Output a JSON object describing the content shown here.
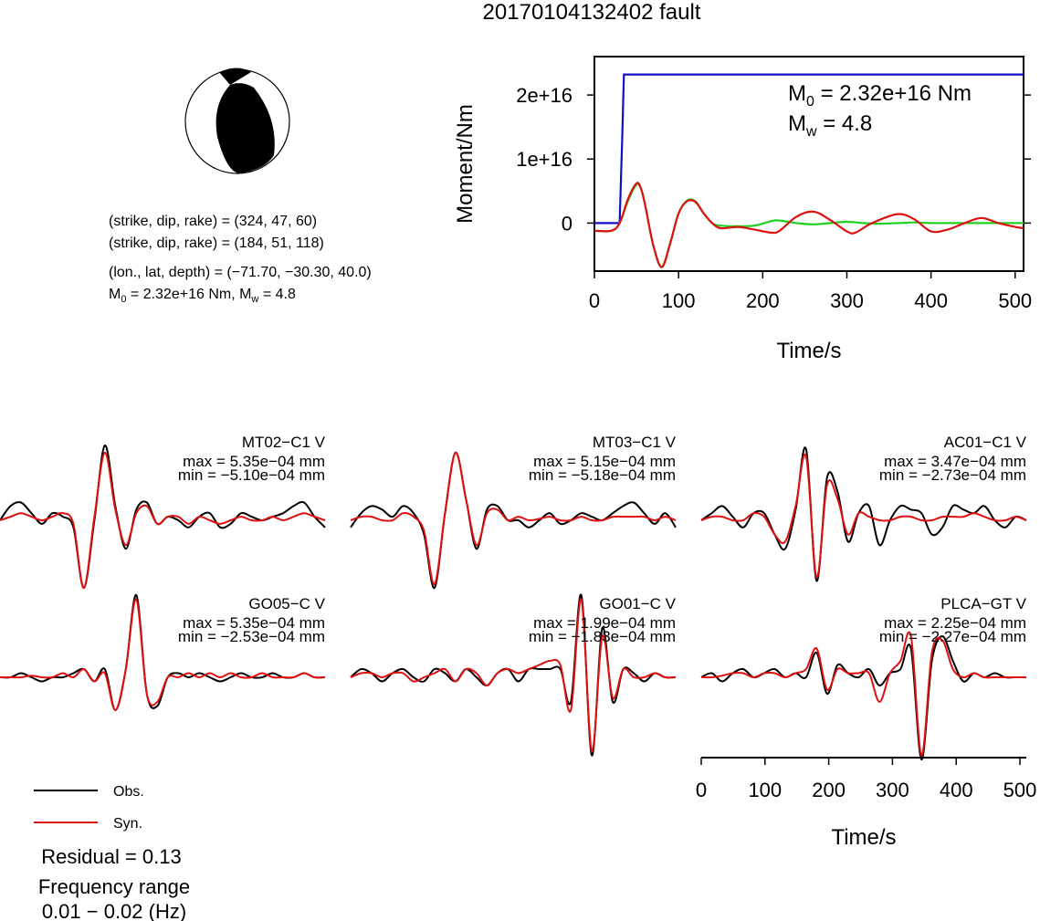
{
  "title": "20170104132402 fault",
  "focal": {
    "lines": [
      "(strike, dip, rake) = (324, 47, 60)",
      "(strike, dip, rake) = (184, 51, 118)",
      "(lon., lat, depth) = (−71.70, −30.30, 40.0)"
    ],
    "m0_label": "M",
    "m0_sub": "0",
    "m0_value": " = 2.32e+16 Nm, M",
    "mw_sub": "w",
    "mw_value": " = 4.8"
  },
  "colors": {
    "obs": "#000000",
    "syn": "#e01010",
    "moment": "#1010c8",
    "fit": "#20d020"
  },
  "chart_data": [
    {
      "type": "line",
      "id": "moment-rate",
      "xlabel": "Time/s",
      "ylabel": "Moment/Nm",
      "xlim": [
        0,
        510
      ],
      "ylim": [
        -7500000000000000.0,
        2.6e+16
      ],
      "xticks": [
        0,
        100,
        200,
        300,
        400,
        500
      ],
      "xtick_labels": [
        "0",
        "100",
        "200",
        "300",
        "400",
        "500"
      ],
      "yticks": [
        0,
        1e+16,
        2e+16
      ],
      "ytick_labels": [
        "0",
        "1e+16",
        "2e+16"
      ],
      "annotation": {
        "m0_sym": "M",
        "m0_sub": "0",
        "m0_text": " = 2.32e+16 Nm",
        "mw_sym": "M",
        "mw_sub": "w",
        "mw_text": " = 4.8"
      },
      "series": [
        {
          "color_key": "moment",
          "x": [
            0,
            30,
            33,
            35,
            510
          ],
          "y": [
            0,
            0,
            1.3e+16,
            2.32e+16,
            2.32e+16
          ]
        },
        {
          "color_key": "fit",
          "x": [
            0,
            20,
            30,
            40,
            50,
            55,
            60,
            70,
            80,
            90,
            100,
            110,
            120,
            130,
            140,
            150,
            170,
            190,
            210,
            220,
            240,
            260,
            280,
            300,
            320,
            340,
            360,
            380,
            400,
            420,
            440,
            460,
            480,
            510
          ],
          "y": [
            -1200000000000000.0,
            -1200000000000000.0,
            0,
            3500000000000000.0,
            6000000000000000.0,
            5500000000000000.0,
            3000000000000000.0,
            -3500000000000000.0,
            -6800000000000000.0,
            -3200000000000000.0,
            1500000000000000.0,
            3500000000000000.0,
            3400000000000000.0,
            1500000000000000.0,
            0,
            -400000000000000.0,
            -500000000000000.0,
            -400000000000000.0,
            300000000000000.0,
            400000000000000.0,
            0,
            -200000000000000.0,
            0,
            200000000000000.0,
            0,
            -100000000000000.0,
            0,
            100000000000000.0,
            0,
            0,
            0,
            0,
            0,
            0
          ]
        },
        {
          "color_key": "syn",
          "x": [
            0,
            20,
            30,
            40,
            50,
            55,
            60,
            70,
            80,
            90,
            100,
            110,
            120,
            130,
            140,
            150,
            170,
            190,
            210,
            220,
            240,
            260,
            280,
            300,
            310,
            330,
            360,
            380,
            400,
            420,
            440,
            460,
            480,
            500,
            510
          ],
          "y": [
            -1200000000000000.0,
            -1200000000000000.0,
            0,
            3800000000000000.0,
            6200000000000000.0,
            5500000000000000.0,
            3000000000000000.0,
            -3500000000000000.0,
            -6900000000000000.0,
            -3200000000000000.0,
            1500000000000000.0,
            3400000000000000.0,
            3300000000000000.0,
            1500000000000000.0,
            0,
            -800000000000000.0,
            -600000000000000.0,
            -1000000000000000.0,
            -1500000000000000.0,
            -1200000000000000.0,
            1000000000000000.0,
            1800000000000000.0,
            500000000000000.0,
            -1300000000000000.0,
            -1500000000000000.0,
            0,
            1400000000000000.0,
            600000000000000.0,
            -1300000000000000.0,
            -1000000000000000.0,
            0,
            800000000000000.0,
            0,
            -600000000000000.0,
            -800000000000000.0
          ]
        }
      ]
    },
    {
      "type": "line",
      "id": "waveforms",
      "xlabel": "Time/s",
      "xlim": [
        0,
        510
      ],
      "xticks": [
        0,
        100,
        200,
        300,
        400,
        500
      ],
      "xtick_labels": [
        "0",
        "100",
        "200",
        "300",
        "400",
        "500"
      ],
      "legend": {
        "placement": "bottom-left",
        "obs": "Obs.",
        "syn": "Syn."
      },
      "residual": "Residual = 0.13",
      "freq_label": "Frequency range",
      "freq_value": "0.01 − 0.02 (Hz)",
      "stations": [
        {
          "name": "MT02−C1 V",
          "max": "max = 5.35e−04 mm",
          "min": "min = −5.10e−04 mm",
          "obs": [
            0,
            0.2,
            0.25,
            0.1,
            -0.05,
            0.1,
            0.05,
            -0.1,
            -0.95,
            0,
            1.05,
            0.2,
            -0.4,
            0.15,
            0.25,
            -0.05,
            0.05,
            0,
            -0.1,
            0.05,
            0.1,
            -0.1,
            -0.05,
            0.1,
            0.05,
            0,
            0.05,
            0.1,
            0.2,
            0.25,
            0.05,
            -0.1
          ],
          "syn": [
            0,
            0.05,
            0.1,
            0.05,
            0,
            0.05,
            0.1,
            -0.05,
            -0.95,
            0.05,
            0.95,
            0.15,
            -0.35,
            0.1,
            0.2,
            -0.05,
            0.05,
            0.05,
            -0.05,
            0.05,
            0,
            -0.05,
            0,
            0.05,
            0,
            0,
            0.05,
            0,
            0.05,
            0.1,
            0.05,
            0
          ]
        },
        {
          "name": "MT03−C1 V",
          "max": "max = 5.15e−04 mm",
          "min": "min = −5.18e−04 mm",
          "obs": [
            -0.1,
            0.1,
            0.2,
            0.15,
            0.05,
            0.2,
            0.1,
            -0.2,
            -0.95,
            0.1,
            0.95,
            0.3,
            -0.4,
            0.15,
            0.2,
            0,
            0,
            -0.1,
            0,
            0.1,
            -0.05,
            0,
            0.1,
            0.05,
            0,
            0.1,
            0.2,
            0.25,
            0.1,
            -0.05,
            0.1,
            -0.1
          ],
          "syn": [
            0,
            0.05,
            0.05,
            0,
            0,
            0.1,
            0.05,
            -0.15,
            -0.9,
            0.1,
            0.95,
            0.3,
            -0.35,
            0.1,
            0.15,
            0,
            0.05,
            0,
            0.02,
            0.05,
            0,
            0,
            0.05,
            0,
            0,
            0.05,
            0.05,
            0.05,
            0.05,
            0,
            0.05,
            0
          ]
        },
        {
          "name": "AC01−C1 V",
          "max": "max = 3.47e−04 mm",
          "min": "min = −2.73e−04 mm",
          "obs": [
            0,
            0.1,
            0.2,
            0.05,
            -0.1,
            0.1,
            0.1,
            -0.2,
            -0.4,
            0.15,
            1,
            -0.85,
            0.6,
            0.4,
            -0.3,
            0.1,
            0.2,
            -0.35,
            0,
            0.2,
            0.15,
            0.1,
            -0.2,
            -0.1,
            0.2,
            0.15,
            0.1,
            0.2,
            0,
            -0.1,
            0.05,
            0
          ],
          "syn": [
            0,
            0.05,
            0.05,
            0,
            0,
            0.1,
            0.05,
            -0.2,
            -0.3,
            0.2,
            0.9,
            -0.8,
            0.5,
            0.3,
            -0.2,
            0.1,
            0.05,
            0,
            0,
            0.05,
            0.05,
            0,
            0,
            0.05,
            0.05,
            0.05,
            0.1,
            0.05,
            0,
            0,
            0.05,
            0
          ]
        },
        {
          "name": "GO05−C V",
          "max": "max = 5.35e−04 mm",
          "min": "min = −2.53e−04 mm",
          "obs": [
            0,
            0,
            0.05,
            0,
            -0.05,
            0,
            0,
            0.05,
            0.1,
            -0.05,
            0.1,
            -0.4,
            0.1,
            1,
            -0.2,
            -0.35,
            0,
            0.05,
            0,
            0.05,
            0,
            -0.05,
            0,
            0.05,
            0,
            0,
            0.05,
            0,
            0,
            0.05,
            0,
            0
          ],
          "syn": [
            0,
            0,
            0,
            0.02,
            0,
            0,
            0.05,
            0,
            0.1,
            -0.05,
            0.05,
            -0.4,
            0.1,
            0.95,
            -0.2,
            -0.3,
            0,
            0,
            0.05,
            0,
            0.05,
            0,
            0.05,
            0,
            0,
            0.05,
            0,
            0,
            0,
            0.05,
            0,
            0
          ]
        },
        {
          "name": "GO01−C V",
          "max": "max = 1.99e−04 mm",
          "min": "min = −1.83e−04 mm",
          "obs": [
            0,
            0.1,
            0.05,
            -0.05,
            0.05,
            0.1,
            0,
            -0.05,
            0.1,
            0.05,
            -0.05,
            0.1,
            0,
            -0.1,
            0.05,
            0.1,
            -0.05,
            0.1,
            0.1,
            0.1,
            0.1,
            -0.3,
            1,
            -0.95,
            0.6,
            -0.3,
            0.1,
            0.05,
            -0.05,
            0.05,
            0,
            0
          ],
          "syn": [
            0,
            0.05,
            0.05,
            0,
            0.05,
            0.05,
            -0.05,
            0,
            0.05,
            0.1,
            -0.05,
            0.1,
            0.05,
            -0.1,
            0.05,
            0.1,
            0.05,
            0.1,
            0.15,
            0.2,
            0.15,
            -0.4,
            0.95,
            -0.9,
            0.5,
            -0.25,
            0.1,
            0,
            0,
            0.05,
            0,
            0
          ]
        },
        {
          "name": "PLCA−GT V",
          "max": "max = 2.25e−04 mm",
          "min": "min = −2.27e−04 mm",
          "obs": [
            0,
            0.05,
            -0.05,
            0.05,
            0.1,
            0,
            0.05,
            0.1,
            0,
            0.05,
            0,
            0.3,
            -0.2,
            0.15,
            0.05,
            0,
            0.1,
            -0.1,
            0.05,
            0.1,
            0.35,
            -1,
            0.2,
            0.5,
            0.2,
            -0.05,
            0.05,
            0,
            0.05,
            0,
            0,
            0
          ],
          "syn": [
            0,
            0,
            0.02,
            0.05,
            0.05,
            0,
            0.05,
            0.05,
            0,
            0.05,
            0.1,
            0.35,
            -0.15,
            0.1,
            0.05,
            0.05,
            0.05,
            -0.3,
            0.05,
            0.2,
            0.5,
            -0.95,
            0.3,
            0.45,
            0.1,
            0,
            0.05,
            0,
            0,
            0,
            0,
            0
          ]
        }
      ]
    }
  ]
}
